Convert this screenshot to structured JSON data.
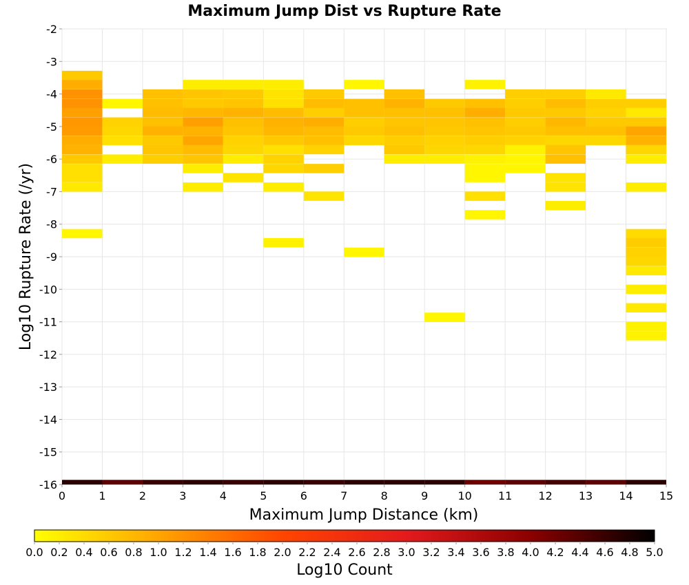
{
  "chart_data": {
    "type": "heatmap",
    "title": "Maximum Jump Dist vs Rupture Rate",
    "xlabel": "Maximum Jump Distance (km)",
    "ylabel": "Log10 Rupture Rate (/yr)",
    "xlim": [
      0,
      15
    ],
    "ylim": [
      -16,
      -2
    ],
    "x_ticks": [
      "0",
      "1",
      "2",
      "3",
      "4",
      "5",
      "6",
      "7",
      "8",
      "9",
      "10",
      "11",
      "12",
      "13",
      "14",
      "15"
    ],
    "y_ticks": [
      "-2",
      "-3",
      "-4",
      "-5",
      "-6",
      "-7",
      "-8",
      "-9",
      "-10",
      "-11",
      "-12",
      "-13",
      "-14",
      "-15",
      "-16"
    ],
    "grid": true,
    "colorbar": {
      "label": "Log10 Count",
      "range": [
        0,
        5
      ],
      "ticks": [
        "0.0",
        "0.2",
        "0.4",
        "0.6",
        "0.8",
        "1.0",
        "1.2",
        "1.4",
        "1.6",
        "1.8",
        "2.0",
        "2.2",
        "2.4",
        "2.6",
        "2.8",
        "3.0",
        "3.2",
        "3.4",
        "3.6",
        "3.8",
        "4.0",
        "4.2",
        "4.4",
        "4.6",
        "4.8",
        "5.0"
      ],
      "stops": [
        "#ffff00",
        "#ffa500",
        "#ff4500",
        "#e31a1c",
        "#8b0000",
        "#000000"
      ]
    },
    "bin_width_x": 1,
    "bin_height_y": 0.285,
    "cells": [
      {
        "x": 0,
        "y": -3.43,
        "v": 0.6
      },
      {
        "x": 0,
        "y": -3.71,
        "v": 0.9
      },
      {
        "x": 0,
        "y": -4.0,
        "v": 1.2
      },
      {
        "x": 0,
        "y": -4.29,
        "v": 1.2
      },
      {
        "x": 0,
        "y": -4.57,
        "v": 1.05
      },
      {
        "x": 0,
        "y": -4.86,
        "v": 1.15
      },
      {
        "x": 0,
        "y": -5.14,
        "v": 1.1
      },
      {
        "x": 0,
        "y": -5.43,
        "v": 0.9
      },
      {
        "x": 0,
        "y": -5.71,
        "v": 0.85
      },
      {
        "x": 0,
        "y": -6.0,
        "v": 0.6
      },
      {
        "x": 0,
        "y": -6.29,
        "v": 0.35
      },
      {
        "x": 0,
        "y": -6.57,
        "v": 0.35
      },
      {
        "x": 0,
        "y": -6.86,
        "v": 0.25
      },
      {
        "x": 0,
        "y": -8.29,
        "v": 0.1
      },
      {
        "x": 0,
        "y": -16.0,
        "v": 4.7
      },
      {
        "x": 1,
        "y": -4.29,
        "v": 0.1
      },
      {
        "x": 1,
        "y": -4.86,
        "v": 0.5
      },
      {
        "x": 1,
        "y": -5.14,
        "v": 0.45
      },
      {
        "x": 1,
        "y": -5.43,
        "v": 0.35
      },
      {
        "x": 1,
        "y": -6.0,
        "v": 0.2
      },
      {
        "x": 1,
        "y": -16.0,
        "v": 4.3
      },
      {
        "x": 2,
        "y": -4.0,
        "v": 0.7
      },
      {
        "x": 2,
        "y": -4.29,
        "v": 0.7
      },
      {
        "x": 2,
        "y": -4.57,
        "v": 0.75
      },
      {
        "x": 2,
        "y": -4.86,
        "v": 0.7
      },
      {
        "x": 2,
        "y": -5.14,
        "v": 0.85
      },
      {
        "x": 2,
        "y": -5.43,
        "v": 0.6
      },
      {
        "x": 2,
        "y": -5.71,
        "v": 0.65
      },
      {
        "x": 2,
        "y": -6.0,
        "v": 0.55
      },
      {
        "x": 2,
        "y": -16.0,
        "v": 4.6
      },
      {
        "x": 3,
        "y": -3.71,
        "v": 0.2
      },
      {
        "x": 3,
        "y": -4.0,
        "v": 0.65
      },
      {
        "x": 3,
        "y": -4.29,
        "v": 0.6
      },
      {
        "x": 3,
        "y": -4.57,
        "v": 0.8
      },
      {
        "x": 3,
        "y": -4.86,
        "v": 1.05
      },
      {
        "x": 3,
        "y": -5.14,
        "v": 0.85
      },
      {
        "x": 3,
        "y": -5.43,
        "v": 1.0
      },
      {
        "x": 3,
        "y": -5.71,
        "v": 0.75
      },
      {
        "x": 3,
        "y": -6.0,
        "v": 0.65
      },
      {
        "x": 3,
        "y": -6.29,
        "v": 0.2
      },
      {
        "x": 3,
        "y": -6.86,
        "v": 0.2
      },
      {
        "x": 3,
        "y": -16.0,
        "v": 4.7
      },
      {
        "x": 4,
        "y": -3.71,
        "v": 0.2
      },
      {
        "x": 4,
        "y": -4.0,
        "v": 0.6
      },
      {
        "x": 4,
        "y": -4.29,
        "v": 0.65
      },
      {
        "x": 4,
        "y": -4.57,
        "v": 0.85
      },
      {
        "x": 4,
        "y": -4.86,
        "v": 0.7
      },
      {
        "x": 4,
        "y": -5.14,
        "v": 0.65
      },
      {
        "x": 4,
        "y": -5.43,
        "v": 0.5
      },
      {
        "x": 4,
        "y": -5.71,
        "v": 0.45
      },
      {
        "x": 4,
        "y": -6.0,
        "v": 0.2
      },
      {
        "x": 4,
        "y": -6.57,
        "v": 0.3
      },
      {
        "x": 4,
        "y": -16.0,
        "v": 4.6
      },
      {
        "x": 5,
        "y": -3.71,
        "v": 0.2
      },
      {
        "x": 5,
        "y": -4.0,
        "v": 0.3
      },
      {
        "x": 5,
        "y": -4.29,
        "v": 0.35
      },
      {
        "x": 5,
        "y": -4.57,
        "v": 0.75
      },
      {
        "x": 5,
        "y": -4.86,
        "v": 0.85
      },
      {
        "x": 5,
        "y": -5.14,
        "v": 0.8
      },
      {
        "x": 5,
        "y": -5.43,
        "v": 0.6
      },
      {
        "x": 5,
        "y": -5.71,
        "v": 0.35
      },
      {
        "x": 5,
        "y": -6.0,
        "v": 0.5
      },
      {
        "x": 5,
        "y": -6.29,
        "v": 0.45
      },
      {
        "x": 5,
        "y": -6.86,
        "v": 0.2
      },
      {
        "x": 5,
        "y": -8.57,
        "v": 0.15
      },
      {
        "x": 5,
        "y": -16.0,
        "v": 4.7
      },
      {
        "x": 6,
        "y": -4.0,
        "v": 0.6
      },
      {
        "x": 6,
        "y": -4.29,
        "v": 0.75
      },
      {
        "x": 6,
        "y": -4.57,
        "v": 0.55
      },
      {
        "x": 6,
        "y": -4.86,
        "v": 0.9
      },
      {
        "x": 6,
        "y": -5.14,
        "v": 0.75
      },
      {
        "x": 6,
        "y": -5.43,
        "v": 0.7
      },
      {
        "x": 6,
        "y": -5.71,
        "v": 0.5
      },
      {
        "x": 6,
        "y": -6.29,
        "v": 0.55
      },
      {
        "x": 6,
        "y": -7.14,
        "v": 0.3
      },
      {
        "x": 6,
        "y": -16.0,
        "v": 4.6
      },
      {
        "x": 7,
        "y": -3.71,
        "v": 0.1
      },
      {
        "x": 7,
        "y": -4.29,
        "v": 0.7
      },
      {
        "x": 7,
        "y": -4.57,
        "v": 0.7
      },
      {
        "x": 7,
        "y": -4.86,
        "v": 0.55
      },
      {
        "x": 7,
        "y": -5.14,
        "v": 0.6
      },
      {
        "x": 7,
        "y": -5.43,
        "v": 0.45
      },
      {
        "x": 7,
        "y": -8.86,
        "v": 0.1
      },
      {
        "x": 7,
        "y": -16.0,
        "v": 4.7
      },
      {
        "x": 8,
        "y": -4.0,
        "v": 0.7
      },
      {
        "x": 8,
        "y": -4.29,
        "v": 0.85
      },
      {
        "x": 8,
        "y": -4.57,
        "v": 0.7
      },
      {
        "x": 8,
        "y": -4.86,
        "v": 0.65
      },
      {
        "x": 8,
        "y": -5.14,
        "v": 0.7
      },
      {
        "x": 8,
        "y": -5.43,
        "v": 0.55
      },
      {
        "x": 8,
        "y": -5.71,
        "v": 0.6
      },
      {
        "x": 8,
        "y": -6.0,
        "v": 0.2
      },
      {
        "x": 8,
        "y": -16.0,
        "v": 4.7
      },
      {
        "x": 9,
        "y": -4.29,
        "v": 0.6
      },
      {
        "x": 9,
        "y": -4.57,
        "v": 0.7
      },
      {
        "x": 9,
        "y": -4.86,
        "v": 0.65
      },
      {
        "x": 9,
        "y": -5.14,
        "v": 0.6
      },
      {
        "x": 9,
        "y": -5.43,
        "v": 0.5
      },
      {
        "x": 9,
        "y": -5.71,
        "v": 0.45
      },
      {
        "x": 9,
        "y": -6.0,
        "v": 0.2
      },
      {
        "x": 9,
        "y": -10.86,
        "v": 0.1
      },
      {
        "x": 9,
        "y": -16.0,
        "v": 4.7
      },
      {
        "x": 10,
        "y": -3.71,
        "v": 0.15
      },
      {
        "x": 10,
        "y": -4.29,
        "v": 0.7
      },
      {
        "x": 10,
        "y": -4.57,
        "v": 0.9
      },
      {
        "x": 10,
        "y": -4.86,
        "v": 0.7
      },
      {
        "x": 10,
        "y": -5.14,
        "v": 0.65
      },
      {
        "x": 10,
        "y": -5.43,
        "v": 0.55
      },
      {
        "x": 10,
        "y": -5.71,
        "v": 0.45
      },
      {
        "x": 10,
        "y": -6.0,
        "v": 0.15
      },
      {
        "x": 10,
        "y": -6.29,
        "v": 0.1
      },
      {
        "x": 10,
        "y": -6.57,
        "v": 0.1
      },
      {
        "x": 10,
        "y": -7.14,
        "v": 0.35
      },
      {
        "x": 10,
        "y": -7.71,
        "v": 0.1
      },
      {
        "x": 10,
        "y": -16.0,
        "v": 4.2
      },
      {
        "x": 11,
        "y": -4.0,
        "v": 0.55
      },
      {
        "x": 11,
        "y": -4.29,
        "v": 0.55
      },
      {
        "x": 11,
        "y": -4.57,
        "v": 0.6
      },
      {
        "x": 11,
        "y": -4.86,
        "v": 0.55
      },
      {
        "x": 11,
        "y": -5.14,
        "v": 0.6
      },
      {
        "x": 11,
        "y": -5.43,
        "v": 0.5
      },
      {
        "x": 11,
        "y": -5.71,
        "v": 0.15
      },
      {
        "x": 11,
        "y": -6.0,
        "v": 0.1
      },
      {
        "x": 11,
        "y": -6.29,
        "v": 0.1
      },
      {
        "x": 11,
        "y": -16.0,
        "v": 4.3
      },
      {
        "x": 12,
        "y": -4.0,
        "v": 0.55
      },
      {
        "x": 12,
        "y": -4.29,
        "v": 0.75
      },
      {
        "x": 12,
        "y": -4.57,
        "v": 0.6
      },
      {
        "x": 12,
        "y": -4.86,
        "v": 0.8
      },
      {
        "x": 12,
        "y": -5.14,
        "v": 0.7
      },
      {
        "x": 12,
        "y": -5.43,
        "v": 0.45
      },
      {
        "x": 12,
        "y": -5.71,
        "v": 0.65
      },
      {
        "x": 12,
        "y": -6.0,
        "v": 0.7
      },
      {
        "x": 12,
        "y": -6.57,
        "v": 0.3
      },
      {
        "x": 12,
        "y": -6.86,
        "v": 0.3
      },
      {
        "x": 12,
        "y": -7.43,
        "v": 0.2
      },
      {
        "x": 12,
        "y": -16.0,
        "v": 4.5
      },
      {
        "x": 13,
        "y": -4.0,
        "v": 0.25
      },
      {
        "x": 13,
        "y": -4.29,
        "v": 0.55
      },
      {
        "x": 13,
        "y": -4.57,
        "v": 0.5
      },
      {
        "x": 13,
        "y": -4.86,
        "v": 0.6
      },
      {
        "x": 13,
        "y": -5.14,
        "v": 0.7
      },
      {
        "x": 13,
        "y": -5.43,
        "v": 0.45
      },
      {
        "x": 13,
        "y": -16.0,
        "v": 4.3
      },
      {
        "x": 14,
        "y": -4.29,
        "v": 0.55
      },
      {
        "x": 14,
        "y": -4.57,
        "v": 0.25
      },
      {
        "x": 14,
        "y": -4.86,
        "v": 0.6
      },
      {
        "x": 14,
        "y": -5.14,
        "v": 1.0
      },
      {
        "x": 14,
        "y": -5.43,
        "v": 0.85
      },
      {
        "x": 14,
        "y": -5.71,
        "v": 0.45
      },
      {
        "x": 14,
        "y": -6.0,
        "v": 0.2
      },
      {
        "x": 14,
        "y": -6.86,
        "v": 0.2
      },
      {
        "x": 14,
        "y": -8.29,
        "v": 0.4
      },
      {
        "x": 14,
        "y": -8.57,
        "v": 0.55
      },
      {
        "x": 14,
        "y": -8.86,
        "v": 0.5
      },
      {
        "x": 14,
        "y": -9.14,
        "v": 0.45
      },
      {
        "x": 14,
        "y": -9.43,
        "v": 0.25
      },
      {
        "x": 14,
        "y": -10.0,
        "v": 0.2
      },
      {
        "x": 14,
        "y": -10.57,
        "v": 0.25
      },
      {
        "x": 14,
        "y": -11.14,
        "v": 0.15
      },
      {
        "x": 14,
        "y": -11.43,
        "v": 0.15
      },
      {
        "x": 14,
        "y": -16.0,
        "v": 4.7
      }
    ]
  }
}
